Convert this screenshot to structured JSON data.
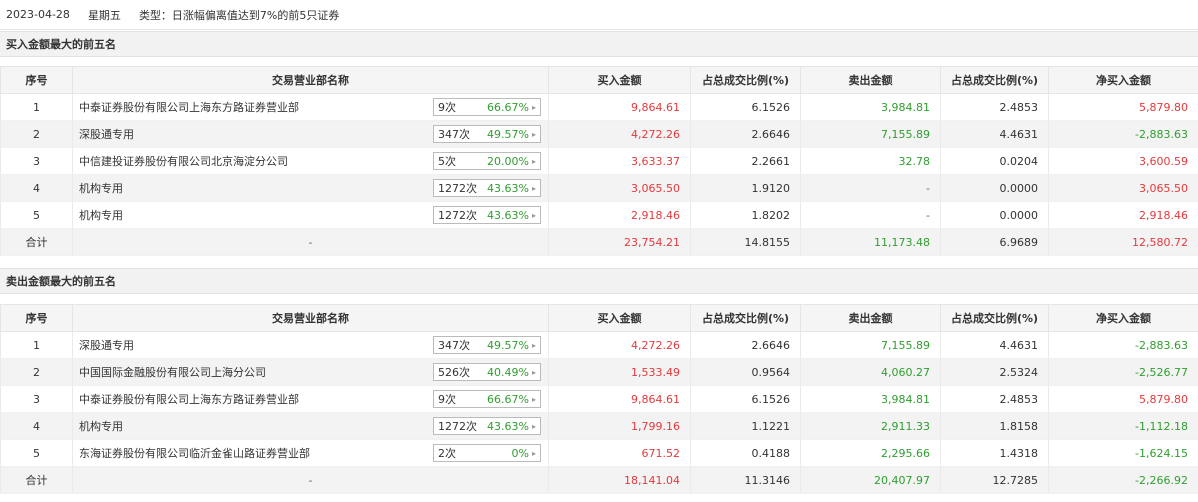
{
  "info": {
    "date": "2023-04-28",
    "weekday": "星期五",
    "type": "类型：日涨幅偏离值达到7%的前5只证券"
  },
  "buy_section": {
    "title": "买入金额最大的前五名"
  },
  "sell_section": {
    "title": "卖出金额最大的前五名"
  },
  "headers": {
    "idx": "序号",
    "name": "交易营业部名称",
    "buy": "买入金额",
    "buy_pct": "占总成交比例(%)",
    "sell": "卖出金额",
    "sell_pct": "占总成交比例(%)",
    "net": "净买入金额"
  },
  "total_label": "合计",
  "dash": "-",
  "buy_rows": [
    {
      "idx": "1",
      "name": "中泰证券股份有限公司上海东方路证券营业部",
      "count": "9次",
      "rate": "66.67%",
      "buy": "9,864.61",
      "buy_pct": "6.1526",
      "sell": "3,984.81",
      "sell_pct": "2.4853",
      "net": "5,879.80"
    },
    {
      "idx": "2",
      "name": "深股通专用",
      "count": "347次",
      "rate": "49.57%",
      "buy": "4,272.26",
      "buy_pct": "2.6646",
      "sell": "7,155.89",
      "sell_pct": "4.4631",
      "net": "-2,883.63"
    },
    {
      "idx": "3",
      "name": "中信建投证券股份有限公司北京海淀分公司",
      "count": "5次",
      "rate": "20.00%",
      "buy": "3,633.37",
      "buy_pct": "2.2661",
      "sell": "32.78",
      "sell_pct": "0.0204",
      "net": "3,600.59"
    },
    {
      "idx": "4",
      "name": "机构专用",
      "count": "1272次",
      "rate": "43.63%",
      "buy": "3,065.50",
      "buy_pct": "1.9120",
      "sell": "-",
      "sell_pct": "0.0000",
      "net": "3,065.50"
    },
    {
      "idx": "5",
      "name": "机构专用",
      "count": "1272次",
      "rate": "43.63%",
      "buy": "2,918.46",
      "buy_pct": "1.8202",
      "sell": "-",
      "sell_pct": "0.0000",
      "net": "2,918.46"
    }
  ],
  "buy_total": {
    "buy": "23,754.21",
    "buy_pct": "14.8155",
    "sell": "11,173.48",
    "sell_pct": "6.9689",
    "net": "12,580.72"
  },
  "sell_rows": [
    {
      "idx": "1",
      "name": "深股通专用",
      "count": "347次",
      "rate": "49.57%",
      "buy": "4,272.26",
      "buy_pct": "2.6646",
      "sell": "7,155.89",
      "sell_pct": "4.4631",
      "net": "-2,883.63"
    },
    {
      "idx": "2",
      "name": "中国国际金融股份有限公司上海分公司",
      "count": "526次",
      "rate": "40.49%",
      "buy": "1,533.49",
      "buy_pct": "0.9564",
      "sell": "4,060.27",
      "sell_pct": "2.5324",
      "net": "-2,526.77"
    },
    {
      "idx": "3",
      "name": "中泰证券股份有限公司上海东方路证券营业部",
      "count": "9次",
      "rate": "66.67%",
      "buy": "9,864.61",
      "buy_pct": "6.1526",
      "sell": "3,984.81",
      "sell_pct": "2.4853",
      "net": "5,879.80"
    },
    {
      "idx": "4",
      "name": "机构专用",
      "count": "1272次",
      "rate": "43.63%",
      "buy": "1,799.16",
      "buy_pct": "1.1221",
      "sell": "2,911.33",
      "sell_pct": "1.8158",
      "net": "-1,112.18"
    },
    {
      "idx": "5",
      "name": "东海证券股份有限公司临沂金雀山路证券营业部",
      "count": "2次",
      "rate": "0%",
      "buy": "671.52",
      "buy_pct": "0.4188",
      "sell": "2,295.66",
      "sell_pct": "1.4318",
      "net": "-1,624.15"
    }
  ],
  "sell_total": {
    "buy": "18,141.04",
    "buy_pct": "11.3146",
    "sell": "20,407.97",
    "sell_pct": "12.7285",
    "net": "-2,266.92"
  },
  "colors": {
    "buy": "#e4393c",
    "sell": "#2f9e2f",
    "header_bg": "#f5f5f5",
    "stripe_bg": "#f3f3f3"
  }
}
